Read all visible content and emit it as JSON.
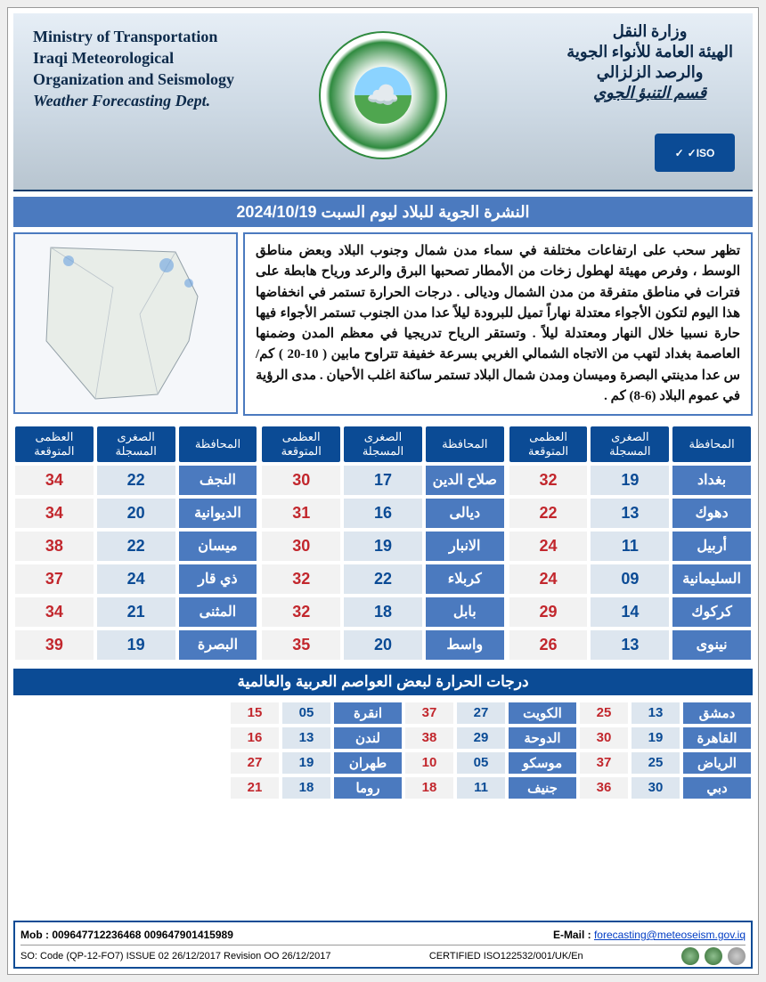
{
  "header": {
    "left": [
      "Ministry of Transportation",
      "Iraqi Meteorological",
      "Organization and Seismology",
      "Weather Forecasting Dept."
    ],
    "right": [
      "وزارة النقل",
      "الهيئة العامة للأنواء الجوية",
      "والرصد الزلزالي",
      "قسم التنبؤ الجوي"
    ],
    "iso": "ISO"
  },
  "bulletin_title": "النشرة الجوية للبلاد ليوم السبت  2024/10/19",
  "synopsis": "تظهر سحب على ارتفاعات مختلفة في سماء مدن شمال وجنوب البلاد وبعض مناطق الوسط ، وفرص مهيئة لهطول زخات من الأمطار تصحبها البرق والرعد ورياح هابطة على فترات في مناطق متفرقة من مدن الشمال وديالى . درجات الحرارة تستمر في انخفاضها هذا اليوم لتكون الأجواء معتدلة نهاراً تميل للبرودة ليلاً عدا مدن الجنوب تستمر الأجواء فيها حارة نسبيا خلال النهار ومعتدلة ليلاً . وتستقر الرياح تدريجيا في معظم المدن وضمنها العاصمة بغداد لتهب من الاتجاه الشمالي الغربي بسرعة خفيفة تتراوح مابين ( 10-20 ) كم/س عدا مدينتي البصرة وميسان ومدن شمال البلاد تستمر ساكنة اغلب الأحيان . مدى الرؤية في عموم البلاد (6-8) كم .",
  "columns": {
    "province": "المحافظة",
    "low": "الصغرى\nالمسجلة",
    "high": "العظمى\nالمتوقعة"
  },
  "table1": [
    {
      "city": "بغداد",
      "lo": "19",
      "hi": "32"
    },
    {
      "city": "دهوك",
      "lo": "13",
      "hi": "22"
    },
    {
      "city": "أربيل",
      "lo": "11",
      "hi": "24"
    },
    {
      "city": "السليمانية",
      "lo": "09",
      "hi": "24"
    },
    {
      "city": "كركوك",
      "lo": "14",
      "hi": "29"
    },
    {
      "city": "نينوى",
      "lo": "13",
      "hi": "26"
    }
  ],
  "table2": [
    {
      "city": "صلاح الدين",
      "lo": "17",
      "hi": "30"
    },
    {
      "city": "ديالى",
      "lo": "16",
      "hi": "31"
    },
    {
      "city": "الانبار",
      "lo": "19",
      "hi": "30"
    },
    {
      "city": "كربلاء",
      "lo": "22",
      "hi": "32"
    },
    {
      "city": "بابل",
      "lo": "18",
      "hi": "32"
    },
    {
      "city": "واسط",
      "lo": "20",
      "hi": "35"
    }
  ],
  "table3": [
    {
      "city": "النجف",
      "lo": "22",
      "hi": "34"
    },
    {
      "city": "الديوانية",
      "lo": "20",
      "hi": "34"
    },
    {
      "city": "ميسان",
      "lo": "22",
      "hi": "38"
    },
    {
      "city": "ذي قار",
      "lo": "24",
      "hi": "37"
    },
    {
      "city": "المثنى",
      "lo": "21",
      "hi": "34"
    },
    {
      "city": "البصرة",
      "lo": "19",
      "hi": "39"
    }
  ],
  "world_title": "درجات الحرارة لبعض العواصم العربية والعالمية",
  "world": [
    [
      {
        "c": "دمشق",
        "l": "13",
        "h": "25"
      },
      {
        "c": "الكويت",
        "l": "27",
        "h": "37"
      },
      {
        "c": "انقرة",
        "l": "05",
        "h": "15"
      }
    ],
    [
      {
        "c": "القاهرة",
        "l": "19",
        "h": "30"
      },
      {
        "c": "الدوحة",
        "l": "29",
        "h": "38"
      },
      {
        "c": "لندن",
        "l": "13",
        "h": "16"
      }
    ],
    [
      {
        "c": "الرياض",
        "l": "25",
        "h": "37"
      },
      {
        "c": "موسكو",
        "l": "05",
        "h": "10"
      },
      {
        "c": "طهران",
        "l": "19",
        "h": "27"
      }
    ],
    [
      {
        "c": "دبي",
        "l": "30",
        "h": "36"
      },
      {
        "c": "جنيف",
        "l": "11",
        "h": "18"
      },
      {
        "c": "روما",
        "l": "18",
        "h": "21"
      }
    ]
  ],
  "footer": {
    "mob": "Mob : 009647712236468  009647901415989",
    "email_label": "E-Mail :",
    "email": "forecasting@meteoseism.gov.iq",
    "so": "SO:    Code (QP-12-FO7)   ISSUE  02  26/12/2017  Revision  OO  26/12/2017",
    "cert": "CERTIFIED ISO122532/001/UK/En"
  },
  "colors": {
    "dark_blue": "#0b4b95",
    "mid_blue": "#4b7abf",
    "light_blue": "#dde6ef",
    "red": "#c2272d"
  }
}
